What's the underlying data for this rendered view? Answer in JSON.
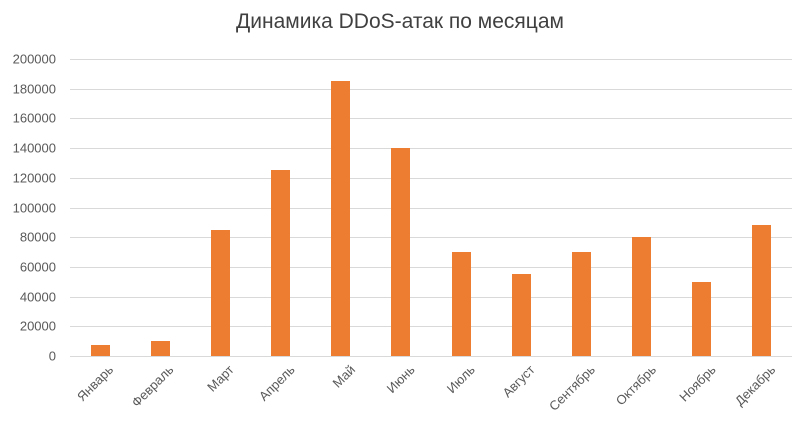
{
  "chart_data": {
    "type": "bar",
    "title": "Динамика DDoS-атак по месяцам",
    "xlabel": "",
    "ylabel": "",
    "ylim": [
      0,
      200000
    ],
    "yticks": [
      0,
      20000,
      40000,
      60000,
      80000,
      100000,
      120000,
      140000,
      160000,
      180000,
      200000
    ],
    "grid": true,
    "legend": null,
    "bar_color": "#ed7d31",
    "categories": [
      "Январь",
      "Февраль",
      "Март",
      "Апрель",
      "Май",
      "Июнь",
      "Июль",
      "Август",
      "Сентябрь",
      "Октябрь",
      "Ноябрь",
      "Декабрь"
    ],
    "values": [
      7500,
      10000,
      85000,
      125000,
      185000,
      140000,
      70000,
      55000,
      70000,
      80000,
      50000,
      88000
    ]
  }
}
